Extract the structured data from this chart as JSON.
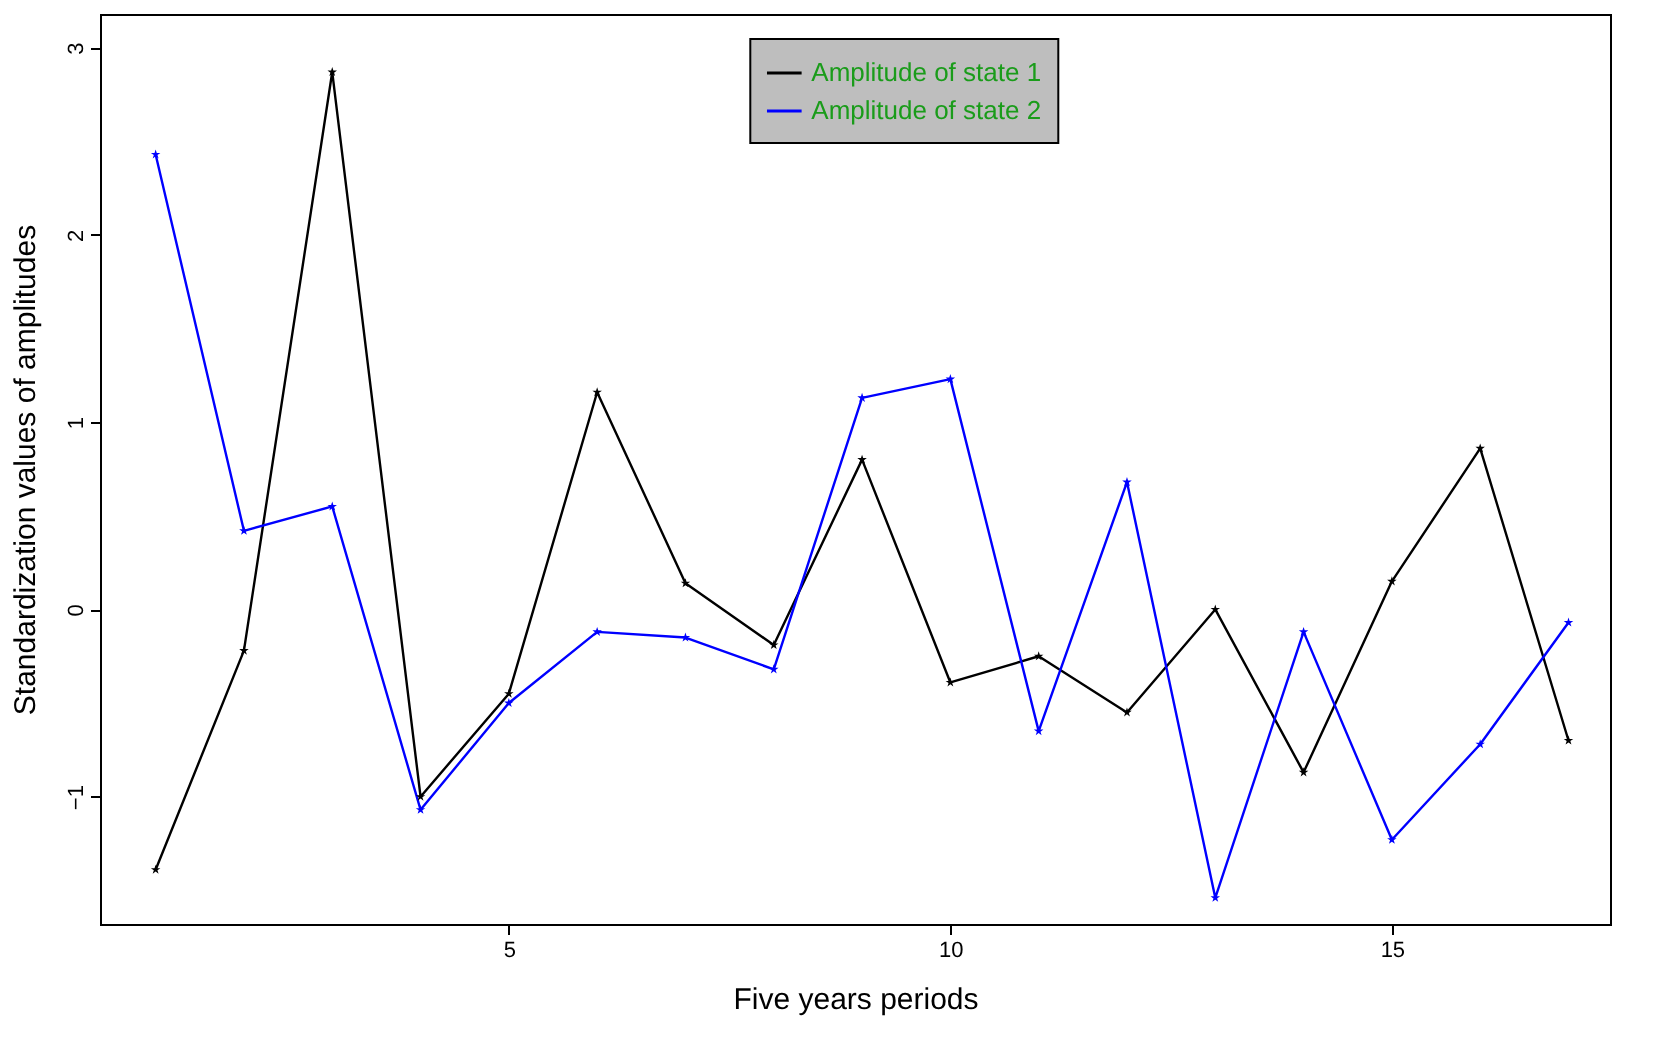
{
  "chart_data": {
    "type": "line",
    "xlabel": "Five years periods",
    "ylabel": "Standardization values of amplitudes",
    "x": [
      1,
      2,
      3,
      4,
      5,
      6,
      7,
      8,
      9,
      10,
      11,
      12,
      13,
      14,
      15,
      16,
      17
    ],
    "series": [
      {
        "name": "Amplitude of state 1",
        "color": "#000000",
        "values": [
          -1.39,
          -0.22,
          2.87,
          -1.0,
          -0.45,
          1.16,
          0.14,
          -0.19,
          0.8,
          -0.39,
          -0.25,
          -0.55,
          0.0,
          -0.87,
          0.15,
          0.86,
          -0.7
        ]
      },
      {
        "name": "Amplitude of state 2",
        "color": "#0000ff",
        "values": [
          2.43,
          0.42,
          0.55,
          -1.07,
          -0.5,
          -0.12,
          -0.15,
          -0.32,
          1.13,
          1.23,
          -0.65,
          0.68,
          -1.54,
          -0.12,
          -1.23,
          -0.72,
          -0.07
        ]
      }
    ],
    "xlim": [
      0.37,
      17.47
    ],
    "ylim": [
      -1.68,
      3.18
    ],
    "xticks": [
      5,
      10,
      15
    ],
    "yticks": [
      -1,
      0,
      1,
      2,
      3
    ],
    "grid": false,
    "legend": "top",
    "marker": "star",
    "line_style": "solid"
  }
}
